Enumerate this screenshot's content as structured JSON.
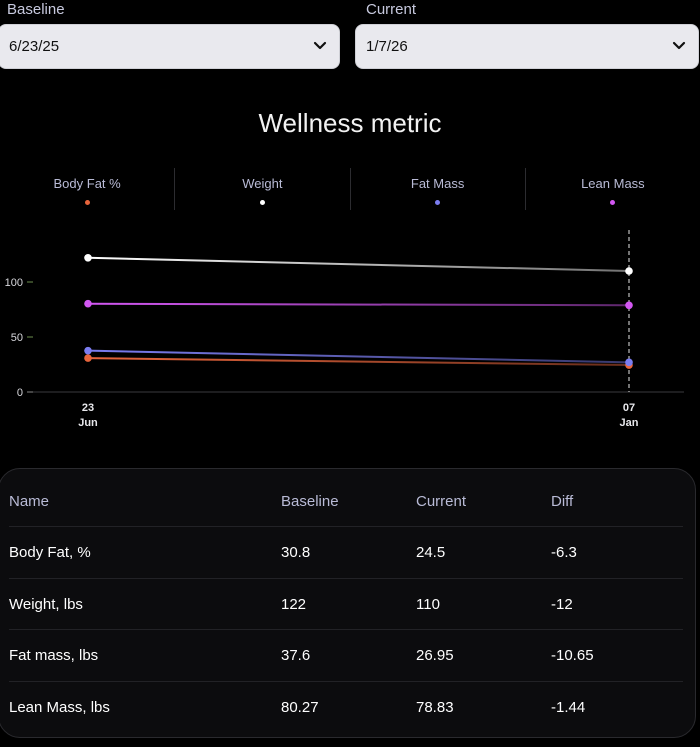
{
  "baseline": {
    "label": "Baseline",
    "value": "6/23/25"
  },
  "current": {
    "label": "Current",
    "value": "1/7/26"
  },
  "chart_data": {
    "type": "line",
    "title": "Wellness metric",
    "x": [
      "23 Jun",
      "07 Jan"
    ],
    "x_ticks": [
      {
        "day": "23",
        "month": "Jun"
      },
      {
        "day": "07",
        "month": "Jan"
      }
    ],
    "y_ticks": [
      "0",
      "50",
      "100"
    ],
    "ylim": [
      0,
      124
    ],
    "series": [
      {
        "name": "Body Fat %",
        "color": "#e8653c",
        "values": [
          30.8,
          24.5
        ]
      },
      {
        "name": "Weight",
        "color": "#ffffff",
        "values": [
          122,
          110
        ]
      },
      {
        "name": "Fat Mass",
        "color": "#7b7df0",
        "values": [
          37.6,
          26.95
        ]
      },
      {
        "name": "Lean Mass",
        "color": "#d257f2",
        "values": [
          80.27,
          78.83
        ]
      }
    ],
    "grid": false,
    "legend_position": "top"
  },
  "table": {
    "headers": [
      "Name",
      "Baseline",
      "Current",
      "Diff"
    ],
    "rows": [
      [
        "Body Fat, %",
        "30.8",
        "24.5",
        "-6.3"
      ],
      [
        "Weight, lbs",
        "122",
        "110",
        "-12"
      ],
      [
        "Fat mass, lbs",
        "37.6",
        "26.95",
        "-10.65"
      ],
      [
        "Lean Mass, lbs",
        "80.27",
        "78.83",
        "-1.44"
      ]
    ]
  }
}
